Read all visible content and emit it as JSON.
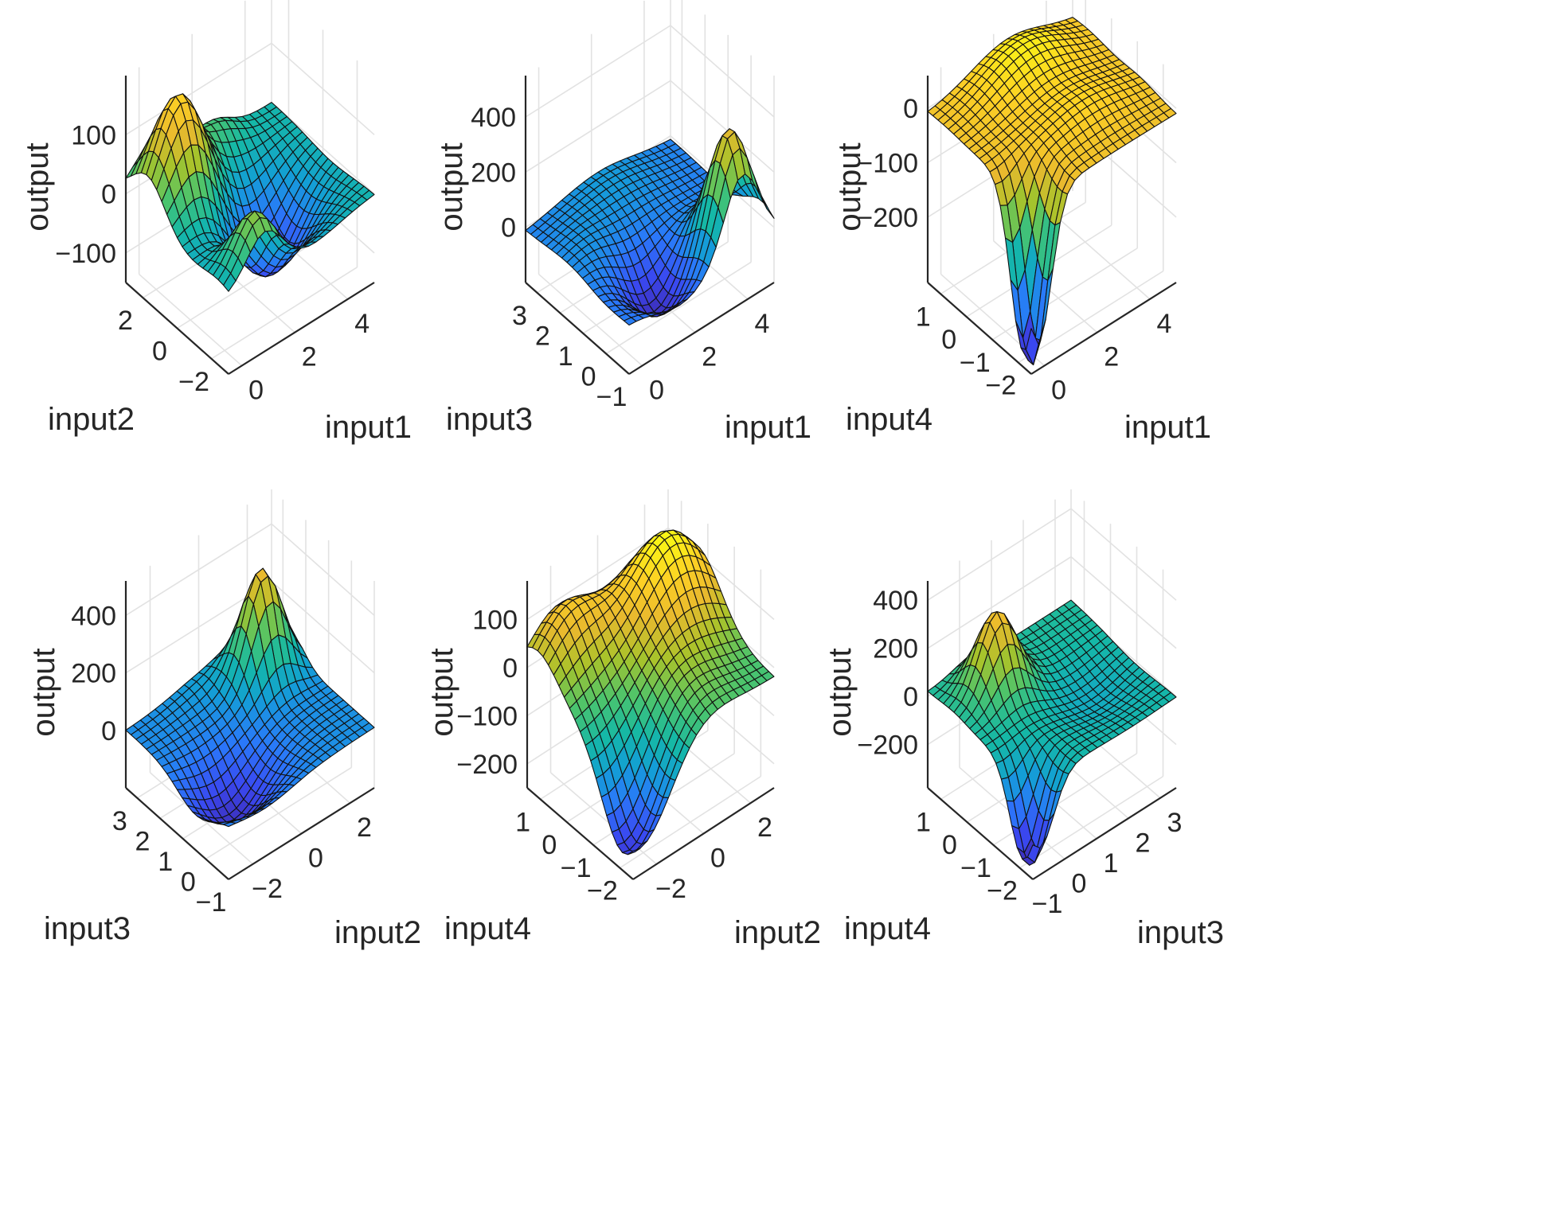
{
  "figure": {
    "colors": {
      "text": "#262626",
      "grid": "#e2e2e2",
      "edge": "#111111",
      "colormap": [
        "#3e26a8",
        "#3a48f0",
        "#2a79f9",
        "#139fd5",
        "#15b8a6",
        "#4cc46c",
        "#a7c32b",
        "#e8b92e",
        "#fdd025",
        "#f9f616"
      ]
    }
  },
  "chart_data": [
    {
      "type": "surface",
      "title": "",
      "xlabel": "input1",
      "ylabel": "input2",
      "zlabel": "output",
      "xticks": [
        "0",
        "2",
        "4"
      ],
      "yticks": [
        "−2",
        "0",
        "2"
      ],
      "zticks": [
        "−100",
        "0",
        "100"
      ],
      "xlim": [
        -0.5,
        5
      ],
      "ylim": [
        -3,
        3
      ],
      "zlim": [
        -150,
        200
      ],
      "grid": true,
      "colormap": "parula",
      "peak_output": 195,
      "min_output": -140
    },
    {
      "type": "surface",
      "title": "",
      "xlabel": "input1",
      "ylabel": "input3",
      "zlabel": "output",
      "xticks": [
        "0",
        "2",
        "4"
      ],
      "yticks": [
        "−1",
        "0",
        "1",
        "2",
        "3"
      ],
      "zticks": [
        "0",
        "200",
        "400"
      ],
      "xlim": [
        -0.5,
        5
      ],
      "ylim": [
        -1,
        3.5
      ],
      "zlim": [
        -200,
        550
      ],
      "grid": true,
      "colormap": "parula",
      "peak_output": 400,
      "min_output": -170
    },
    {
      "type": "surface",
      "title": "",
      "xlabel": "input1",
      "ylabel": "input4",
      "zlabel": "output",
      "xticks": [
        "0",
        "2",
        "4"
      ],
      "yticks": [
        "−2",
        "−1",
        "0",
        "1"
      ],
      "zticks": [
        "−200",
        "−100",
        "0"
      ],
      "xlim": [
        -0.5,
        5
      ],
      "ylim": [
        -2.5,
        1.5
      ],
      "zlim": [
        -320,
        60
      ],
      "grid": true,
      "colormap": "parula",
      "peak_output": 45,
      "min_output": -310
    },
    {
      "type": "surface",
      "title": "",
      "xlabel": "input2",
      "ylabel": "input3",
      "zlabel": "output",
      "xticks": [
        "−2",
        "0",
        "2"
      ],
      "yticks": [
        "−1",
        "0",
        "1",
        "2",
        "3"
      ],
      "zticks": [
        "0",
        "200",
        "400"
      ],
      "xlim": [
        -3,
        3
      ],
      "ylim": [
        -1,
        3.5
      ],
      "zlim": [
        -200,
        520
      ],
      "grid": true,
      "colormap": "parula",
      "peak_output": 360,
      "min_output": -170
    },
    {
      "type": "surface",
      "title": "",
      "xlabel": "input2",
      "ylabel": "input4",
      "zlabel": "output",
      "xticks": [
        "−2",
        "0",
        "2"
      ],
      "yticks": [
        "−2",
        "−1",
        "0",
        "1"
      ],
      "zticks": [
        "−200",
        "−100",
        "0",
        "100"
      ],
      "xlim": [
        -3,
        3
      ],
      "ylim": [
        -2.5,
        1.5
      ],
      "zlim": [
        -250,
        180
      ],
      "grid": true,
      "colormap": "parula",
      "peak_output": 180,
      "min_output": -240
    },
    {
      "type": "surface",
      "title": "",
      "xlabel": "input3",
      "ylabel": "input4",
      "zlabel": "output",
      "xticks": [
        "−1",
        "0",
        "1",
        "2",
        "3"
      ],
      "yticks": [
        "−2",
        "−1",
        "0",
        "1"
      ],
      "zticks": [
        "−200",
        "0",
        "200",
        "400"
      ],
      "xlim": [
        -1,
        3.5
      ],
      "ylim": [
        -2.5,
        1.5
      ],
      "zlim": [
        -380,
        480
      ],
      "grid": true,
      "colormap": "parula",
      "peak_output": 300,
      "min_output": -370
    }
  ]
}
